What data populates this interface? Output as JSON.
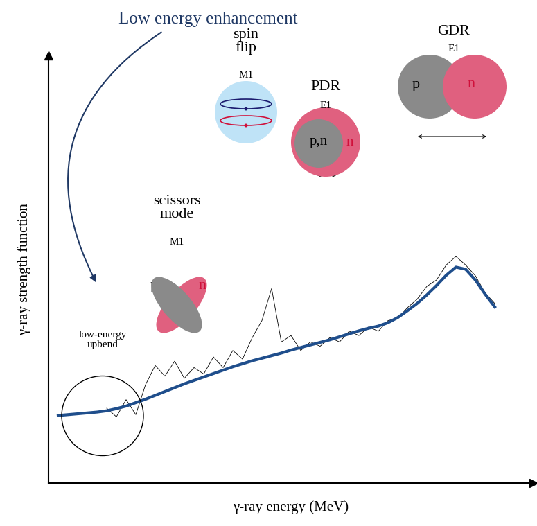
{
  "chart_data": {
    "type": "line",
    "heading": "Low energy enhancement",
    "x_label": "γ-ray energy (MeV)",
    "y_label": "γ-ray strength function",
    "upbend_label": "low-energy\nupbend",
    "modes": [
      {
        "name": "scissors\nmode",
        "multipolarity": "M1",
        "particles": [
          "p",
          "n"
        ]
      },
      {
        "name": "spin\nflip",
        "multipolarity": "M1",
        "particles": []
      },
      {
        "name": "PDR",
        "multipolarity": "E1",
        "particles": [
          "p,n",
          "n"
        ]
      },
      {
        "name": "GDR",
        "multipolarity": "E1",
        "particles": [
          "p",
          "n"
        ]
      }
    ],
    "tick_labels": false,
    "xlim": [
      0,
      10
    ],
    "ylim": [
      0,
      10
    ],
    "x": [
      0.2,
      0.4,
      0.6,
      0.8,
      1.0,
      1.2,
      1.4,
      1.6,
      1.8,
      2.0,
      2.2,
      2.4,
      2.6,
      2.8,
      3.0,
      3.2,
      3.4,
      3.6,
      3.8,
      4.0,
      4.2,
      4.4,
      4.6,
      4.8,
      5.0,
      5.2,
      5.4,
      5.6,
      5.8,
      6.0,
      6.2,
      6.4,
      6.6,
      6.8,
      7.0,
      7.2,
      7.4,
      7.6,
      7.8,
      8.0,
      8.2,
      8.4,
      8.6,
      8.8,
      9.0,
      9.2
    ],
    "series": [
      {
        "color": "#000000",
        "values": [
          null,
          null,
          null,
          null,
          null,
          1.75,
          1.55,
          1.95,
          1.6,
          2.3,
          2.75,
          2.5,
          2.85,
          2.45,
          2.7,
          2.55,
          2.95,
          2.7,
          3.1,
          2.9,
          3.4,
          3.8,
          4.55,
          3.3,
          3.45,
          3.1,
          3.3,
          3.2,
          3.4,
          3.3,
          3.55,
          3.45,
          3.65,
          3.55,
          3.8,
          3.85,
          4.1,
          4.3,
          4.6,
          4.75,
          5.1,
          5.3,
          5.1,
          4.85,
          4.45,
          4.2
        ]
      },
      {
        "color": "#1f4e8c",
        "values": [
          1.58,
          1.6,
          1.62,
          1.64,
          1.66,
          1.69,
          1.74,
          1.8,
          1.88,
          1.96,
          2.05,
          2.14,
          2.23,
          2.32,
          2.4,
          2.48,
          2.56,
          2.64,
          2.72,
          2.79,
          2.86,
          2.92,
          2.98,
          3.04,
          3.11,
          3.17,
          3.23,
          3.29,
          3.35,
          3.42,
          3.49,
          3.56,
          3.62,
          3.67,
          3.75,
          3.87,
          4.03,
          4.2,
          4.4,
          4.62,
          4.86,
          5.05,
          5.0,
          4.75,
          4.42,
          4.12
        ]
      }
    ]
  }
}
